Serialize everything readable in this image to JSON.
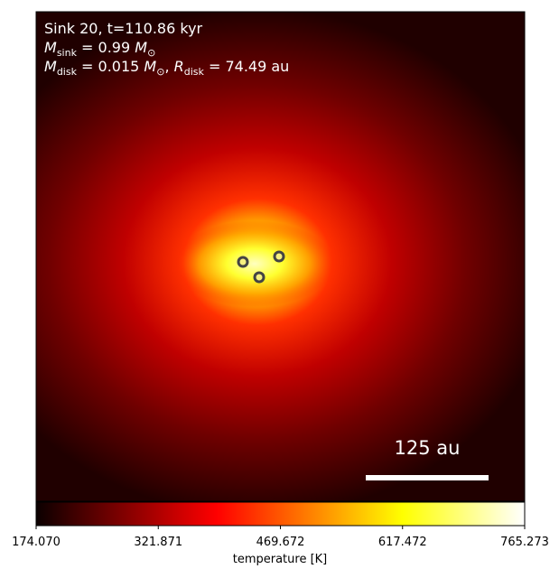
{
  "chart_data": {
    "type": "image",
    "annotations": [
      [
        "Sink 20, t=110.86 kyr"
      ],
      [
        "M",
        "sink",
        " = 0.99 ",
        "M",
        "⊙"
      ],
      [
        "M",
        "disk",
        " = 0.015 ",
        "M",
        "⊙",
        ", ",
        "R",
        "disk",
        " = 74.49 au"
      ]
    ],
    "scale_bar": "125 au",
    "colorbar": {
      "label": "temperature [K]",
      "lim": [
        174.07,
        765.273
      ],
      "ticks": [
        {
          "value": 174.07,
          "label": "174.070"
        },
        {
          "value": 321.871,
          "label": "321.871"
        },
        {
          "value": 469.672,
          "label": "469.672"
        },
        {
          "value": 617.472,
          "label": "617.472"
        },
        {
          "value": 765.273,
          "label": "765.273"
        }
      ]
    }
  }
}
